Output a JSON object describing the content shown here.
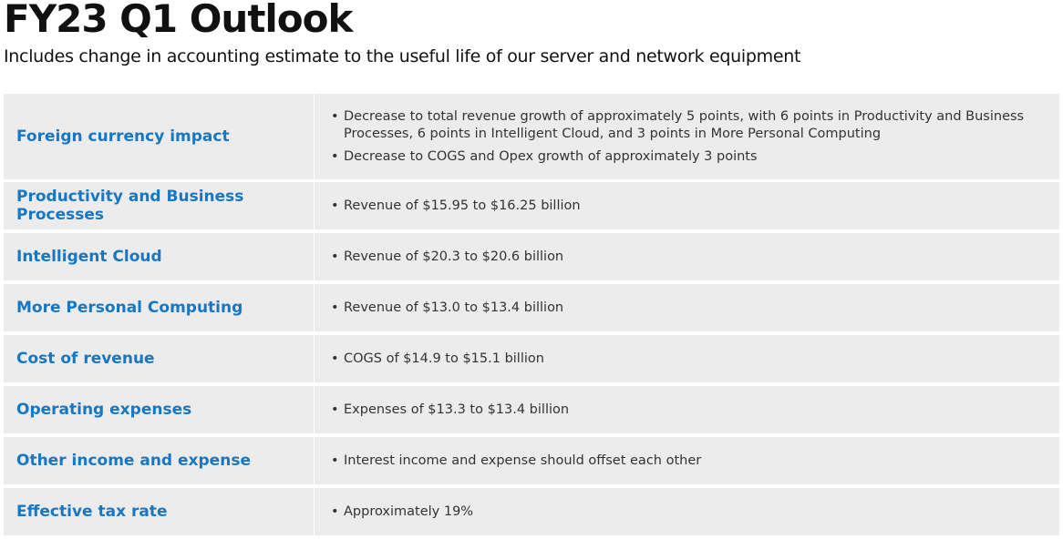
{
  "header": {
    "title": "FY23 Q1 Outlook",
    "subtitle": "Includes change in accounting estimate to the useful life of our server and network equipment"
  },
  "table": {
    "rows": [
      {
        "label": "Foreign currency impact",
        "bullets": [
          "Decrease to total revenue growth of approximately 5 points, with 6 points in Productivity and Business Processes, 6 points in Intelligent Cloud, and 3 points in More Personal Computing",
          "Decrease to COGS and Opex growth of approximately 3 points"
        ]
      },
      {
        "label": "Productivity and Business Processes",
        "bullets": [
          "Revenue of $15.95 to $16.25 billion"
        ]
      },
      {
        "label": "Intelligent Cloud",
        "bullets": [
          "Revenue of $20.3 to $20.6 billion"
        ]
      },
      {
        "label": "More Personal Computing",
        "bullets": [
          "Revenue of $13.0 to $13.4 billion"
        ]
      },
      {
        "label": "Cost of revenue",
        "bullets": [
          "COGS of $14.9 to $15.1 billion"
        ]
      },
      {
        "label": "Operating expenses",
        "bullets": [
          "Expenses of $13.3 to $13.4 billion"
        ]
      },
      {
        "label": "Other income and expense",
        "bullets": [
          "Interest income and expense should offset each other"
        ]
      },
      {
        "label": "Effective tax rate",
        "bullets": [
          "Approximately 19%"
        ]
      }
    ]
  }
}
